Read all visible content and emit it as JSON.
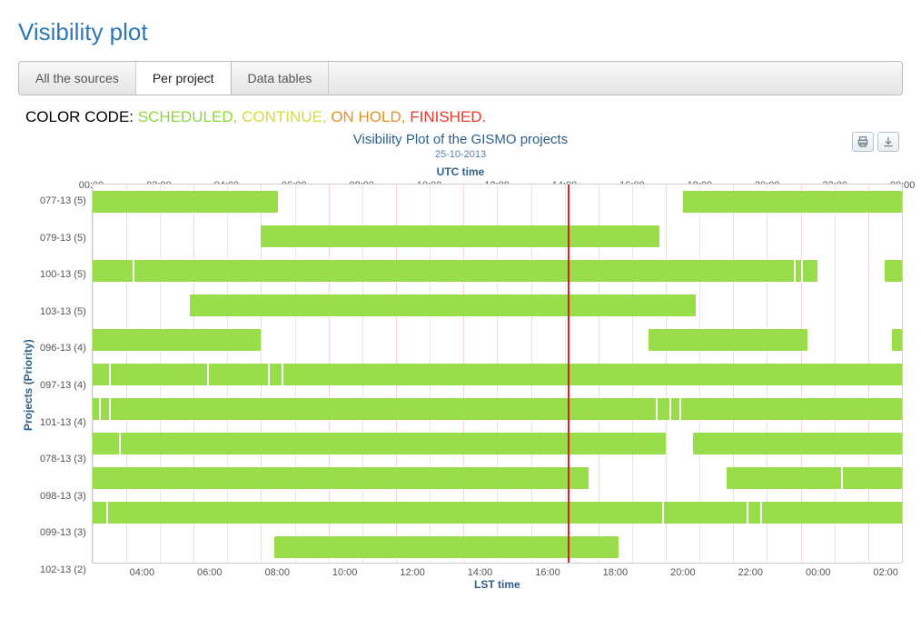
{
  "page": {
    "title": "Visibility plot"
  },
  "tabs": [
    {
      "label": "All the sources",
      "active": false
    },
    {
      "label": "Per project",
      "active": true
    },
    {
      "label": "Data tables",
      "active": false
    }
  ],
  "color_code": {
    "prefix": "COLOR CODE: ",
    "scheduled": "SCHEDULED,",
    "continue": "CONTINUE,",
    "onhold": "ON HOLD,",
    "finished": "FINISHED."
  },
  "toolbar": {
    "print": "print",
    "download": "download"
  },
  "chart": {
    "type": "gantt",
    "title": "Visibility Plot of the GISMO projects",
    "subtitle": "25-10-2013",
    "top_axis_label": "UTC time",
    "bottom_axis_label": "LST time",
    "y_axis_label": "Projects (Priority)",
    "bar_color": "#9add4a",
    "grid_color": "#e4e8eb",
    "minor_grid_color": "#ffd5d5",
    "background_color": "#ffffff",
    "current_time_utc_hours": 14.1,
    "time_range_hours": 24,
    "top_ticks": [
      "00:00",
      "02:00",
      "04:00",
      "06:00",
      "08:00",
      "10:00",
      "12:00",
      "14:00",
      "16:00",
      "18:00",
      "20:00",
      "22:00",
      "00:00"
    ],
    "bottom_ticks": [
      "04:00",
      "06:00",
      "08:00",
      "10:00",
      "12:00",
      "14:00",
      "16:00",
      "18:00",
      "20:00",
      "22:00",
      "00:00",
      "02:00"
    ],
    "bottom_tick_offset_hours": 1.5,
    "rows": [
      {
        "label": "077-13 (5)",
        "bars": [
          [
            0.0,
            5.5
          ],
          [
            17.5,
            24.0
          ]
        ]
      },
      {
        "label": "079-13 (5)",
        "bars": [
          [
            5.0,
            16.8
          ]
        ]
      },
      {
        "label": "100-13 (5)",
        "bars": [
          [
            0.0,
            21.5
          ],
          [
            23.5,
            24.0
          ]
        ],
        "seps": [
          1.2,
          20.8,
          21.0
        ]
      },
      {
        "label": "103-13 (5)",
        "bars": [
          [
            2.9,
            17.9
          ]
        ]
      },
      {
        "label": "096-13 (4)",
        "bars": [
          [
            0.0,
            5.0
          ],
          [
            16.5,
            21.2
          ],
          [
            23.7,
            24.0
          ]
        ]
      },
      {
        "label": "097-13 (4)",
        "bars": [
          [
            0.0,
            24.0
          ]
        ],
        "seps": [
          0.5,
          3.4,
          5.2,
          5.6,
          14.1
        ]
      },
      {
        "label": "101-13 (4)",
        "bars": [
          [
            0.0,
            24.0
          ]
        ],
        "seps": [
          0.2,
          0.5,
          16.7,
          17.1,
          17.4
        ]
      },
      {
        "label": "078-13 (3)",
        "bars": [
          [
            0.0,
            17.0
          ],
          [
            17.8,
            24.0
          ]
        ],
        "seps": [
          0.8
        ]
      },
      {
        "label": "098-13 (3)",
        "bars": [
          [
            0.0,
            14.7
          ],
          [
            18.8,
            24.0
          ]
        ],
        "seps": [
          22.2
        ]
      },
      {
        "label": "099-13 (3)",
        "bars": [
          [
            0.0,
            24.0
          ]
        ],
        "seps": [
          0.4,
          16.9,
          19.4,
          19.8
        ]
      },
      {
        "label": "102-13 (2)",
        "bars": [
          [
            5.4,
            15.6
          ]
        ]
      }
    ]
  }
}
